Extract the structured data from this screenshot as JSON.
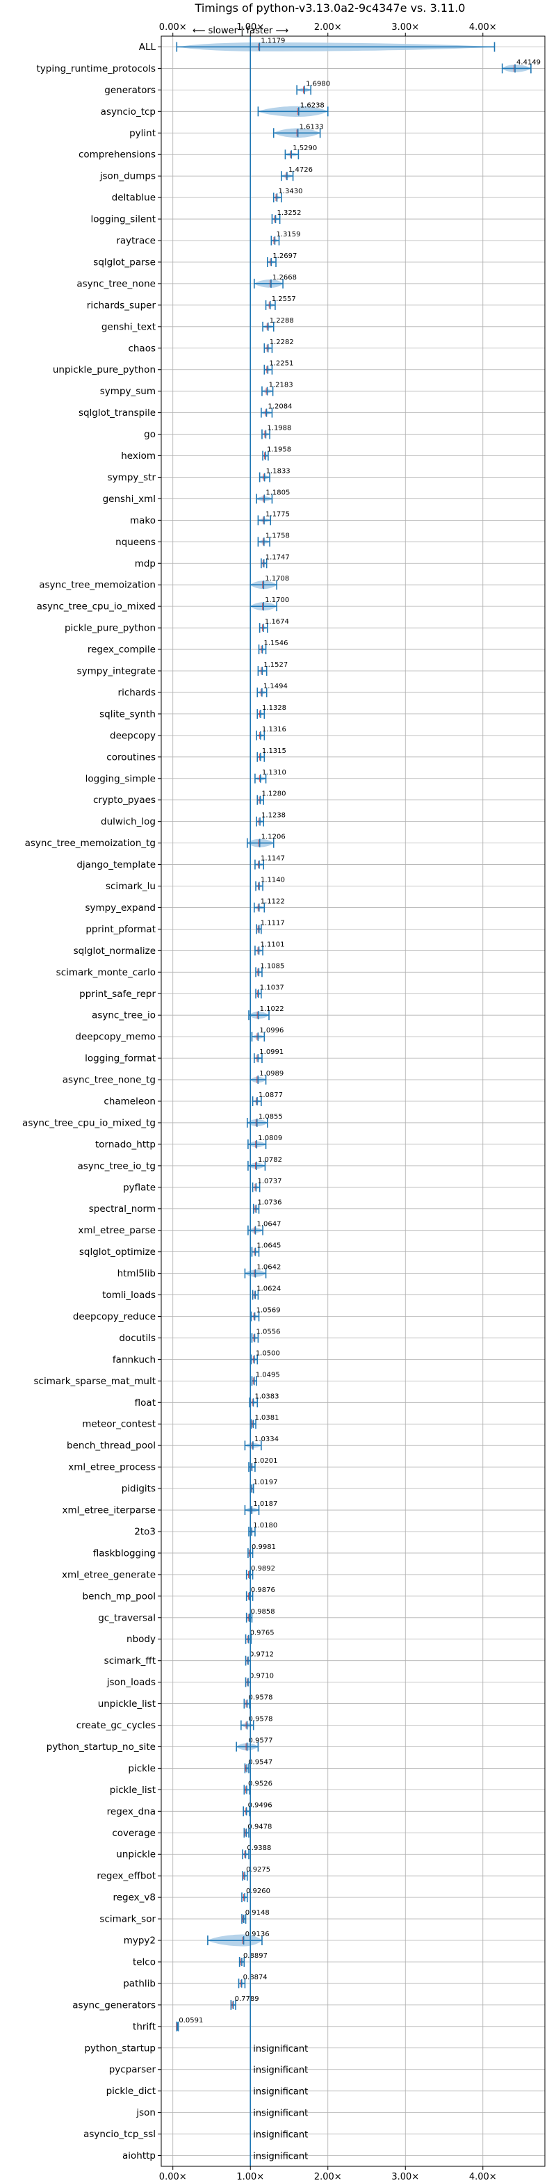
{
  "chart_data": {
    "type": "violin",
    "title": "Timings of python-v3.13.0a2-9c4347e vs. 3.11.0",
    "direction_label": "⟵ slower | faster ⟶",
    "xlim": [
      -0.15,
      4.8
    ],
    "reference_line": 1.0,
    "x_ticks": [
      0,
      1,
      2,
      3,
      4
    ],
    "x_tick_labels": [
      "0.00×",
      "1.00×",
      "2.00×",
      "3.00×",
      "4.00×"
    ],
    "colors": {
      "violin": "#a9cbe6",
      "errorbar": "#1f77b4",
      "reference": "#1f77b4",
      "mean_marker": "#d62728"
    },
    "insignificant_text": "insignificant",
    "benchmarks": [
      {
        "name": "ALL",
        "value": 1.1179,
        "label": "1.1179",
        "lo": 0.05,
        "hi": 4.15,
        "w": 0.38
      },
      {
        "name": "typing_runtime_protocols",
        "value": 4.4149,
        "label": "4.4149",
        "lo": 4.25,
        "hi": 4.62,
        "w": 0.32
      },
      {
        "name": "generators",
        "value": 1.698,
        "label": "1.6980",
        "lo": 1.6,
        "hi": 1.78,
        "w": 0.15
      },
      {
        "name": "asyncio_tcp",
        "value": 1.6238,
        "label": "1.6238",
        "lo": 1.1,
        "hi": 2.0,
        "w": 0.45
      },
      {
        "name": "pylint",
        "value": 1.6133,
        "label": "1.6133",
        "lo": 1.3,
        "hi": 1.9,
        "w": 0.4
      },
      {
        "name": "comprehensions",
        "value": 1.529,
        "label": "1.5290",
        "lo": 1.45,
        "hi": 1.62,
        "w": 0.15
      },
      {
        "name": "json_dumps",
        "value": 1.4726,
        "label": "1.4726",
        "lo": 1.4,
        "hi": 1.55,
        "w": 0.15
      },
      {
        "name": "deltablue",
        "value": 1.343,
        "label": "1.3430",
        "lo": 1.3,
        "hi": 1.4,
        "w": 0.12
      },
      {
        "name": "logging_silent",
        "value": 1.3252,
        "label": "1.3252",
        "lo": 1.28,
        "hi": 1.38,
        "w": 0.12
      },
      {
        "name": "raytrace",
        "value": 1.3159,
        "label": "1.3159",
        "lo": 1.27,
        "hi": 1.37,
        "w": 0.12
      },
      {
        "name": "sqlglot_parse",
        "value": 1.2697,
        "label": "1.2697",
        "lo": 1.22,
        "hi": 1.33,
        "w": 0.12
      },
      {
        "name": "async_tree_none",
        "value": 1.2668,
        "label": "1.2668",
        "lo": 1.05,
        "hi": 1.42,
        "w": 0.35
      },
      {
        "name": "richards_super",
        "value": 1.2557,
        "label": "1.2557",
        "lo": 1.2,
        "hi": 1.32,
        "w": 0.14
      },
      {
        "name": "genshi_text",
        "value": 1.2288,
        "label": "1.2288",
        "lo": 1.16,
        "hi": 1.3,
        "w": 0.15
      },
      {
        "name": "chaos",
        "value": 1.2282,
        "label": "1.2282",
        "lo": 1.18,
        "hi": 1.28,
        "w": 0.12
      },
      {
        "name": "unpickle_pure_python",
        "value": 1.2251,
        "label": "1.2251",
        "lo": 1.18,
        "hi": 1.28,
        "w": 0.1
      },
      {
        "name": "sympy_sum",
        "value": 1.2183,
        "label": "1.2183",
        "lo": 1.15,
        "hi": 1.29,
        "w": 0.15
      },
      {
        "name": "sqlglot_transpile",
        "value": 1.2084,
        "label": "1.2084",
        "lo": 1.14,
        "hi": 1.28,
        "w": 0.15
      },
      {
        "name": "go",
        "value": 1.1988,
        "label": "1.1988",
        "lo": 1.15,
        "hi": 1.25,
        "w": 0.12
      },
      {
        "name": "hexiom",
        "value": 1.1958,
        "label": "1.1958",
        "lo": 1.16,
        "hi": 1.23,
        "w": 0.08
      },
      {
        "name": "sympy_str",
        "value": 1.1833,
        "label": "1.1833",
        "lo": 1.12,
        "hi": 1.25,
        "w": 0.15
      },
      {
        "name": "genshi_xml",
        "value": 1.1805,
        "label": "1.1805",
        "lo": 1.08,
        "hi": 1.28,
        "w": 0.2
      },
      {
        "name": "mako",
        "value": 1.1775,
        "label": "1.1775",
        "lo": 1.1,
        "hi": 1.26,
        "w": 0.16
      },
      {
        "name": "nqueens",
        "value": 1.1758,
        "label": "1.1758",
        "lo": 1.1,
        "hi": 1.25,
        "w": 0.15
      },
      {
        "name": "mdp",
        "value": 1.1747,
        "label": "1.1747",
        "lo": 1.14,
        "hi": 1.21,
        "w": 0.08
      },
      {
        "name": "async_tree_memoization",
        "value": 1.1708,
        "label": "1.1708",
        "lo": 1.0,
        "hi": 1.34,
        "w": 0.35
      },
      {
        "name": "async_tree_cpu_io_mixed",
        "value": 1.17,
        "label": "1.1700",
        "lo": 1.0,
        "hi": 1.34,
        "w": 0.35
      },
      {
        "name": "pickle_pure_python",
        "value": 1.1674,
        "label": "1.1674",
        "lo": 1.12,
        "hi": 1.22,
        "w": 0.1
      },
      {
        "name": "regex_compile",
        "value": 1.1546,
        "label": "1.1546",
        "lo": 1.11,
        "hi": 1.2,
        "w": 0.1
      },
      {
        "name": "sympy_integrate",
        "value": 1.1527,
        "label": "1.1527",
        "lo": 1.1,
        "hi": 1.21,
        "w": 0.12
      },
      {
        "name": "richards",
        "value": 1.1494,
        "label": "1.1494",
        "lo": 1.09,
        "hi": 1.21,
        "w": 0.14
      },
      {
        "name": "sqlite_synth",
        "value": 1.1328,
        "label": "1.1328",
        "lo": 1.09,
        "hi": 1.18,
        "w": 0.1
      },
      {
        "name": "deepcopy",
        "value": 1.1316,
        "label": "1.1316",
        "lo": 1.08,
        "hi": 1.18,
        "w": 0.12
      },
      {
        "name": "coroutines",
        "value": 1.1315,
        "label": "1.1315",
        "lo": 1.09,
        "hi": 1.18,
        "w": 0.1
      },
      {
        "name": "logging_simple",
        "value": 1.131,
        "label": "1.1310",
        "lo": 1.06,
        "hi": 1.2,
        "w": 0.16
      },
      {
        "name": "crypto_pyaes",
        "value": 1.128,
        "label": "1.1280",
        "lo": 1.09,
        "hi": 1.17,
        "w": 0.1
      },
      {
        "name": "dulwich_log",
        "value": 1.1238,
        "label": "1.1238",
        "lo": 1.08,
        "hi": 1.17,
        "w": 0.1
      },
      {
        "name": "async_tree_memoization_tg",
        "value": 1.1206,
        "label": "1.1206",
        "lo": 0.96,
        "hi": 1.3,
        "w": 0.35
      },
      {
        "name": "django_template",
        "value": 1.1147,
        "label": "1.1147",
        "lo": 1.06,
        "hi": 1.17,
        "w": 0.12
      },
      {
        "name": "scimark_lu",
        "value": 1.114,
        "label": "1.1140",
        "lo": 1.07,
        "hi": 1.16,
        "w": 0.1
      },
      {
        "name": "sympy_expand",
        "value": 1.1122,
        "label": "1.1122",
        "lo": 1.05,
        "hi": 1.18,
        "w": 0.14
      },
      {
        "name": "pprint_pformat",
        "value": 1.1117,
        "label": "1.1117",
        "lo": 1.08,
        "hi": 1.14,
        "w": 0.07
      },
      {
        "name": "sqlglot_normalize",
        "value": 1.1101,
        "label": "1.1101",
        "lo": 1.06,
        "hi": 1.16,
        "w": 0.1
      },
      {
        "name": "scimark_monte_carlo",
        "value": 1.1085,
        "label": "1.1085",
        "lo": 1.07,
        "hi": 1.15,
        "w": 0.08
      },
      {
        "name": "pprint_safe_repr",
        "value": 1.1037,
        "label": "1.1037",
        "lo": 1.07,
        "hi": 1.14,
        "w": 0.07
      },
      {
        "name": "async_tree_io",
        "value": 1.1022,
        "label": "1.1022",
        "lo": 0.98,
        "hi": 1.24,
        "w": 0.3
      },
      {
        "name": "deepcopy_memo",
        "value": 1.0996,
        "label": "1.0996",
        "lo": 1.02,
        "hi": 1.18,
        "w": 0.16
      },
      {
        "name": "logging_format",
        "value": 1.0991,
        "label": "1.0991",
        "lo": 1.05,
        "hi": 1.15,
        "w": 0.1
      },
      {
        "name": "async_tree_none_tg",
        "value": 1.0989,
        "label": "1.0989",
        "lo": 1.0,
        "hi": 1.2,
        "w": 0.25
      },
      {
        "name": "chameleon",
        "value": 1.0877,
        "label": "1.0877",
        "lo": 1.03,
        "hi": 1.14,
        "w": 0.12
      },
      {
        "name": "async_tree_cpu_io_mixed_tg",
        "value": 1.0855,
        "label": "1.0855",
        "lo": 0.96,
        "hi": 1.22,
        "w": 0.3
      },
      {
        "name": "tornado_http",
        "value": 1.0809,
        "label": "1.0809",
        "lo": 0.97,
        "hi": 1.2,
        "w": 0.25
      },
      {
        "name": "async_tree_io_tg",
        "value": 1.0782,
        "label": "1.0782",
        "lo": 0.97,
        "hi": 1.19,
        "w": 0.25
      },
      {
        "name": "pyflate",
        "value": 1.0737,
        "label": "1.0737",
        "lo": 1.03,
        "hi": 1.12,
        "w": 0.1
      },
      {
        "name": "spectral_norm",
        "value": 1.0736,
        "label": "1.0736",
        "lo": 1.04,
        "hi": 1.11,
        "w": 0.08
      },
      {
        "name": "xml_etree_parse",
        "value": 1.0647,
        "label": "1.0647",
        "lo": 0.97,
        "hi": 1.16,
        "w": 0.2
      },
      {
        "name": "sqlglot_optimize",
        "value": 1.0645,
        "label": "1.0645",
        "lo": 1.02,
        "hi": 1.11,
        "w": 0.1
      },
      {
        "name": "html5lib",
        "value": 1.0642,
        "label": "1.0642",
        "lo": 0.93,
        "hi": 1.2,
        "w": 0.3
      },
      {
        "name": "tomli_loads",
        "value": 1.0624,
        "label": "1.0624",
        "lo": 1.03,
        "hi": 1.1,
        "w": 0.07
      },
      {
        "name": "deepcopy_reduce",
        "value": 1.0569,
        "label": "1.0569",
        "lo": 1.01,
        "hi": 1.11,
        "w": 0.11
      },
      {
        "name": "docutils",
        "value": 1.0556,
        "label": "1.0556",
        "lo": 1.02,
        "hi": 1.1,
        "w": 0.08
      },
      {
        "name": "fannkuch",
        "value": 1.05,
        "label": "1.0500",
        "lo": 1.01,
        "hi": 1.09,
        "w": 0.08
      },
      {
        "name": "scimark_sparse_mat_mult",
        "value": 1.0495,
        "label": "1.0495",
        "lo": 1.02,
        "hi": 1.08,
        "w": 0.07
      },
      {
        "name": "float",
        "value": 1.0383,
        "label": "1.0383",
        "lo": 0.99,
        "hi": 1.09,
        "w": 0.11
      },
      {
        "name": "meteor_contest",
        "value": 1.0381,
        "label": "1.0381",
        "lo": 1.01,
        "hi": 1.07,
        "w": 0.07
      },
      {
        "name": "bench_thread_pool",
        "value": 1.0334,
        "label": "1.0334",
        "lo": 0.93,
        "hi": 1.14,
        "w": 0.2
      },
      {
        "name": "xml_etree_process",
        "value": 1.0201,
        "label": "1.0201",
        "lo": 0.98,
        "hi": 1.06,
        "w": 0.09
      },
      {
        "name": "pidigits",
        "value": 1.0197,
        "label": "1.0197",
        "lo": 1.0,
        "hi": 1.04,
        "w": 0.05
      },
      {
        "name": "xml_etree_iterparse",
        "value": 1.0187,
        "label": "1.0187",
        "lo": 0.93,
        "hi": 1.11,
        "w": 0.2
      },
      {
        "name": "2to3",
        "value": 1.018,
        "label": "1.0180",
        "lo": 0.98,
        "hi": 1.06,
        "w": 0.09
      },
      {
        "name": "flaskblogging",
        "value": 0.9981,
        "label": "0.9981",
        "lo": 0.97,
        "hi": 1.03,
        "w": 0.06
      },
      {
        "name": "xml_etree_generate",
        "value": 0.9892,
        "label": "0.9892",
        "lo": 0.95,
        "hi": 1.03,
        "w": 0.09
      },
      {
        "name": "bench_mp_pool",
        "value": 0.9876,
        "label": "0.9876",
        "lo": 0.95,
        "hi": 1.03,
        "w": 0.09
      },
      {
        "name": "gc_traversal",
        "value": 0.9858,
        "label": "0.9858",
        "lo": 0.95,
        "hi": 1.02,
        "w": 0.08
      },
      {
        "name": "nbody",
        "value": 0.9765,
        "label": "0.9765",
        "lo": 0.94,
        "hi": 1.01,
        "w": 0.08
      },
      {
        "name": "scimark_fft",
        "value": 0.9712,
        "label": "0.9712",
        "lo": 0.94,
        "hi": 1.0,
        "w": 0.07
      },
      {
        "name": "json_loads",
        "value": 0.971,
        "label": "0.9710",
        "lo": 0.94,
        "hi": 1.0,
        "w": 0.07
      },
      {
        "name": "unpickle_list",
        "value": 0.9578,
        "label": "0.9578",
        "lo": 0.92,
        "hi": 0.99,
        "w": 0.08
      },
      {
        "name": "create_gc_cycles",
        "value": 0.9578,
        "label": "0.9578",
        "lo": 0.88,
        "hi": 1.04,
        "w": 0.18
      },
      {
        "name": "python_startup_no_site",
        "value": 0.9577,
        "label": "0.9577",
        "lo": 0.82,
        "hi": 1.1,
        "w": 0.3
      },
      {
        "name": "pickle",
        "value": 0.9547,
        "label": "0.9547",
        "lo": 0.93,
        "hi": 0.98,
        "w": 0.05
      },
      {
        "name": "pickle_list",
        "value": 0.9526,
        "label": "0.9526",
        "lo": 0.92,
        "hi": 0.99,
        "w": 0.08
      },
      {
        "name": "regex_dna",
        "value": 0.9496,
        "label": "0.9496",
        "lo": 0.91,
        "hi": 0.99,
        "w": 0.09
      },
      {
        "name": "coverage",
        "value": 0.9478,
        "label": "0.9478",
        "lo": 0.92,
        "hi": 0.98,
        "w": 0.07
      },
      {
        "name": "unpickle",
        "value": 0.9388,
        "label": "0.9388",
        "lo": 0.9,
        "hi": 0.98,
        "w": 0.09
      },
      {
        "name": "regex_effbot",
        "value": 0.9275,
        "label": "0.9275",
        "lo": 0.9,
        "hi": 0.96,
        "w": 0.07
      },
      {
        "name": "regex_v8",
        "value": 0.926,
        "label": "0.9260",
        "lo": 0.89,
        "hi": 0.96,
        "w": 0.08
      },
      {
        "name": "scimark_sor",
        "value": 0.9148,
        "label": "0.9148",
        "lo": 0.89,
        "hi": 0.94,
        "w": 0.06
      },
      {
        "name": "mypy2",
        "value": 0.9136,
        "label": "0.9136",
        "lo": 0.45,
        "hi": 1.15,
        "w": 0.5
      },
      {
        "name": "telco",
        "value": 0.8897,
        "label": "0.8897",
        "lo": 0.86,
        "hi": 0.92,
        "w": 0.07
      },
      {
        "name": "pathlib",
        "value": 0.8874,
        "label": "0.8874",
        "lo": 0.85,
        "hi": 0.93,
        "w": 0.09
      },
      {
        "name": "async_generators",
        "value": 0.7789,
        "label": "0.7789",
        "lo": 0.75,
        "hi": 0.81,
        "w": 0.07
      },
      {
        "name": "thrift",
        "value": 0.0591,
        "label": "0.0591",
        "lo": 0.05,
        "hi": 0.07,
        "w": 0.05
      },
      {
        "name": "python_startup",
        "value": null,
        "label": "insignificant"
      },
      {
        "name": "pycparser",
        "value": null,
        "label": "insignificant"
      },
      {
        "name": "pickle_dict",
        "value": null,
        "label": "insignificant"
      },
      {
        "name": "json",
        "value": null,
        "label": "insignificant"
      },
      {
        "name": "asyncio_tcp_ssl",
        "value": null,
        "label": "insignificant"
      },
      {
        "name": "aiohttp",
        "value": null,
        "label": "insignificant"
      }
    ]
  }
}
